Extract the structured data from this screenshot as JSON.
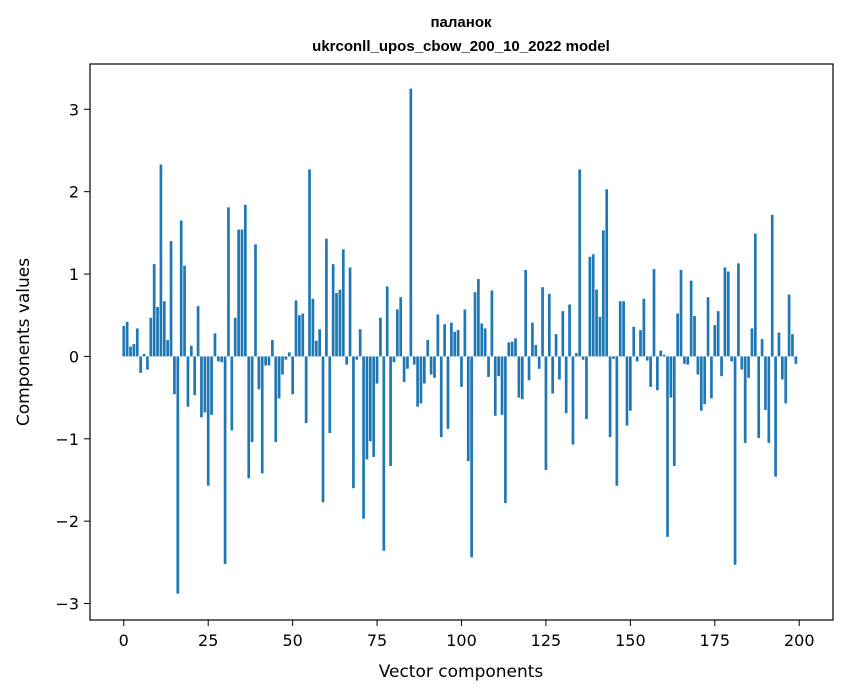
{
  "chart_data": {
    "type": "bar",
    "title_lines": [
      "паланок",
      "ukrconll_upos_cbow_200_10_2022 model"
    ],
    "xlabel": "Vector components",
    "ylabel": "Components values",
    "xlim": [
      -10,
      210
    ],
    "ylim": [
      -3.2,
      3.55
    ],
    "xticks": [
      0,
      25,
      50,
      75,
      100,
      125,
      150,
      175,
      200
    ],
    "yticks": [
      -3,
      -2,
      -1,
      0,
      1,
      2,
      3
    ],
    "bar_color": "#1f77b4",
    "grid": false,
    "legend": "none",
    "x": [
      0,
      1,
      2,
      3,
      4,
      5,
      6,
      7,
      8,
      9,
      10,
      11,
      12,
      13,
      14,
      15,
      16,
      17,
      18,
      19,
      20,
      21,
      22,
      23,
      24,
      25,
      26,
      27,
      28,
      29,
      30,
      31,
      32,
      33,
      34,
      35,
      36,
      37,
      38,
      39,
      40,
      41,
      42,
      43,
      44,
      45,
      46,
      47,
      48,
      49,
      50,
      51,
      52,
      53,
      54,
      55,
      56,
      57,
      58,
      59,
      60,
      61,
      62,
      63,
      64,
      65,
      66,
      67,
      68,
      69,
      70,
      71,
      72,
      73,
      74,
      75,
      76,
      77,
      78,
      79,
      80,
      81,
      82,
      83,
      84,
      85,
      86,
      87,
      88,
      89,
      90,
      91,
      92,
      93,
      94,
      95,
      96,
      97,
      98,
      99,
      100,
      101,
      102,
      103,
      104,
      105,
      106,
      107,
      108,
      109,
      110,
      111,
      112,
      113,
      114,
      115,
      116,
      117,
      118,
      119,
      120,
      121,
      122,
      123,
      124,
      125,
      126,
      127,
      128,
      129,
      130,
      131,
      132,
      133,
      134,
      135,
      136,
      137,
      138,
      139,
      140,
      141,
      142,
      143,
      144,
      145,
      146,
      147,
      148,
      149,
      150,
      151,
      152,
      153,
      154,
      155,
      156,
      157,
      158,
      159,
      160,
      161,
      162,
      163,
      164,
      165,
      166,
      167,
      168,
      169,
      170,
      171,
      172,
      173,
      174,
      175,
      176,
      177,
      178,
      179,
      180,
      181,
      182,
      183,
      184,
      185,
      186,
      187,
      188,
      189,
      190,
      191,
      192,
      193,
      194,
      195,
      196,
      197,
      198,
      199
    ],
    "values": [
      0.37,
      0.42,
      0.12,
      0.15,
      0.34,
      -0.2,
      0.03,
      -0.16,
      0.47,
      1.12,
      0.6,
      2.33,
      0.67,
      0.2,
      1.4,
      -0.46,
      -2.88,
      1.65,
      1.1,
      -0.61,
      0.13,
      -0.47,
      0.61,
      -0.74,
      -0.68,
      -1.57,
      -0.71,
      0.28,
      -0.06,
      -0.07,
      -2.52,
      1.81,
      -0.9,
      0.47,
      1.54,
      1.54,
      1.84,
      -1.48,
      -1.04,
      1.36,
      -0.4,
      -1.42,
      -0.11,
      -0.11,
      0.2,
      -1.04,
      -0.51,
      -0.22,
      -0.04,
      0.05,
      -0.46,
      0.68,
      0.5,
      0.52,
      -0.81,
      2.27,
      0.7,
      0.19,
      0.33,
      -1.77,
      1.43,
      -0.93,
      1.12,
      0.77,
      0.81,
      1.3,
      -0.1,
      1.08,
      -1.6,
      -0.04,
      0.33,
      -1.97,
      -1.25,
      -1.03,
      -1.22,
      -0.33,
      0.47,
      -2.36,
      0.85,
      -1.33,
      -0.07,
      0.57,
      0.72,
      -0.31,
      -0.15,
      3.25,
      -0.1,
      -0.61,
      -0.57,
      -0.33,
      0.2,
      -0.22,
      -0.26,
      0.51,
      -0.98,
      0.39,
      -0.88,
      0.41,
      0.3,
      0.32,
      -0.37,
      0.57,
      -1.27,
      -2.44,
      0.78,
      0.94,
      0.4,
      0.34,
      -0.25,
      0.8,
      -0.72,
      -0.24,
      -0.71,
      -1.78,
      0.17,
      0.18,
      0.22,
      -0.5,
      -0.52,
      1.05,
      -0.29,
      0.41,
      0.14,
      -0.15,
      0.84,
      -1.38,
      0.76,
      -0.45,
      0.27,
      -0.28,
      0.55,
      -0.69,
      0.63,
      -1.07,
      0.04,
      2.27,
      -0.04,
      -0.76,
      1.21,
      1.24,
      0.81,
      0.48,
      1.53,
      2.03,
      -0.98,
      -0.03,
      -1.57,
      0.67,
      0.67,
      -0.84,
      -0.66,
      0.36,
      -0.06,
      0.32,
      0.7,
      -0.05,
      -0.37,
      1.06,
      -0.41,
      0.07,
      0.02,
      -2.19,
      -0.5,
      -1.33,
      0.52,
      1.05,
      -0.09,
      -0.1,
      0.92,
      0.49,
      -0.22,
      -0.66,
      -0.58,
      0.72,
      -0.51,
      0.38,
      0.55,
      -0.24,
      1.08,
      1.03,
      -0.06,
      -2.53,
      1.13,
      -0.16,
      -1.05,
      -0.26,
      0.34,
      1.49,
      -0.99,
      0.21,
      -0.65,
      -1.05,
      1.72,
      -1.46,
      0.29,
      -0.28,
      -0.57,
      0.75,
      0.27,
      -0.09
    ]
  }
}
